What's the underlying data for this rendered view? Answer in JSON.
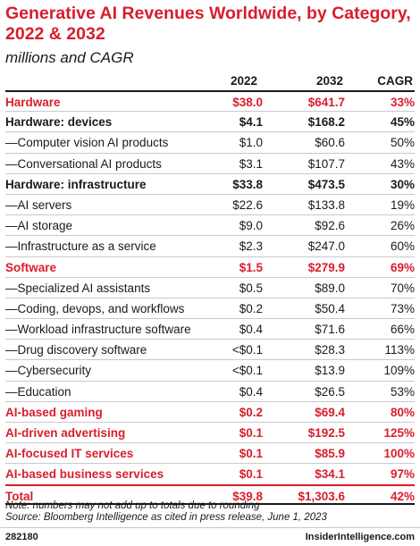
{
  "title": "Generative AI Revenues Worldwide, by Category, 2022 & 2032",
  "subtitle": "millions and CAGR",
  "columns": [
    "2022",
    "2032",
    "CAGR"
  ],
  "rows": [
    {
      "label": "Hardware",
      "v2022": "$38.0",
      "v2032": "$641.7",
      "cagr": "33%",
      "style": "red"
    },
    {
      "label": "Hardware: devices",
      "v2022": "$4.1",
      "v2032": "$168.2",
      "cagr": "45%",
      "style": "bold"
    },
    {
      "label": "—Computer vision AI products",
      "v2022": "$1.0",
      "v2032": "$60.6",
      "cagr": "50%",
      "style": "normal"
    },
    {
      "label": "—Conversational AI products",
      "v2022": "$3.1",
      "v2032": "$107.7",
      "cagr": "43%",
      "style": "normal"
    },
    {
      "label": "Hardware: infrastructure",
      "v2022": "$33.8",
      "v2032": "$473.5",
      "cagr": "30%",
      "style": "bold"
    },
    {
      "label": "—AI servers",
      "v2022": "$22.6",
      "v2032": "$133.8",
      "cagr": "19%",
      "style": "normal"
    },
    {
      "label": "—AI storage",
      "v2022": "$9.0",
      "v2032": "$92.6",
      "cagr": "26%",
      "style": "normal"
    },
    {
      "label": "—Infrastructure as a service",
      "v2022": "$2.3",
      "v2032": "$247.0",
      "cagr": "60%",
      "style": "normal"
    },
    {
      "label": "Software",
      "v2022": "$1.5",
      "v2032": "$279.9",
      "cagr": "69%",
      "style": "red"
    },
    {
      "label": "—Specialized AI assistants",
      "v2022": "$0.5",
      "v2032": "$89.0",
      "cagr": "70%",
      "style": "normal"
    },
    {
      "label": "—Coding, devops, and workflows",
      "v2022": "$0.2",
      "v2032": "$50.4",
      "cagr": "73%",
      "style": "normal"
    },
    {
      "label": "—Workload infrastructure software",
      "v2022": "$0.4",
      "v2032": "$71.6",
      "cagr": "66%",
      "style": "normal"
    },
    {
      "label": "—Drug discovery software",
      "v2022": "<$0.1",
      "v2032": "$28.3",
      "cagr": "113%",
      "style": "normal"
    },
    {
      "label": "—Cybersecurity",
      "v2022": "<$0.1",
      "v2032": "$13.9",
      "cagr": "109%",
      "style": "normal"
    },
    {
      "label": "—Education",
      "v2022": "$0.4",
      "v2032": "$26.5",
      "cagr": "53%",
      "style": "normal"
    },
    {
      "label": "AI-based gaming",
      "v2022": "$0.2",
      "v2032": "$69.4",
      "cagr": "80%",
      "style": "red"
    },
    {
      "label": "AI-driven advertising",
      "v2022": "$0.1",
      "v2032": "$192.5",
      "cagr": "125%",
      "style": "red"
    },
    {
      "label": "AI-focused IT services",
      "v2022": "$0.1",
      "v2032": "$85.9",
      "cagr": "100%",
      "style": "red"
    },
    {
      "label": "AI-based business services",
      "v2022": "$0.1",
      "v2032": "$34.1",
      "cagr": "97%",
      "style": "red"
    },
    {
      "label": "Total",
      "v2022": "$39.8",
      "v2032": "$1,303.6",
      "cagr": "42%",
      "style": "total"
    }
  ],
  "note": "Note: numbers may not add up to totals due to rounding",
  "source": "Source: Bloomberg Intelligence as cited in press release, June 1, 2023",
  "footer_id": "282180",
  "footer_brand": "InsiderIntelligence.com",
  "colors": {
    "accent": "#d81e2c",
    "text": "#1a1a1a",
    "rule": "#c9c9c9"
  }
}
